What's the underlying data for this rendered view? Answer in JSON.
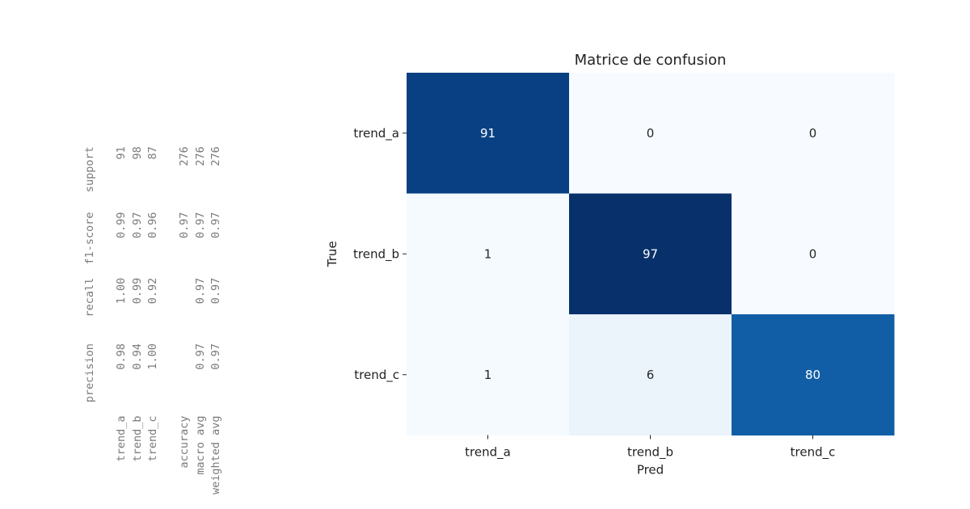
{
  "report": {
    "lines": [
      "              precision    recall  f1-score   support",
      "",
      "     trend_a       0.98      1.00      0.99        91",
      "     trend_b       0.94      0.99      0.97        98",
      "     trend_c       1.00      0.92      0.96        87",
      "",
      "    accuracy                           0.97       276",
      "   macro avg       0.97      0.97      0.97       276",
      "weighted avg       0.97      0.97      0.97       276"
    ]
  },
  "chart_data": {
    "type": "heatmap",
    "title": "Matrice de confusion",
    "xlabel": "Pred",
    "ylabel": "True",
    "x_categories": [
      "trend_a",
      "trend_b",
      "trend_c"
    ],
    "y_categories": [
      "trend_a",
      "trend_b",
      "trend_c"
    ],
    "values": [
      [
        91,
        0,
        0
      ],
      [
        1,
        97,
        0
      ],
      [
        1,
        6,
        80
      ]
    ],
    "colormap": "Blues",
    "colorbar": false
  }
}
